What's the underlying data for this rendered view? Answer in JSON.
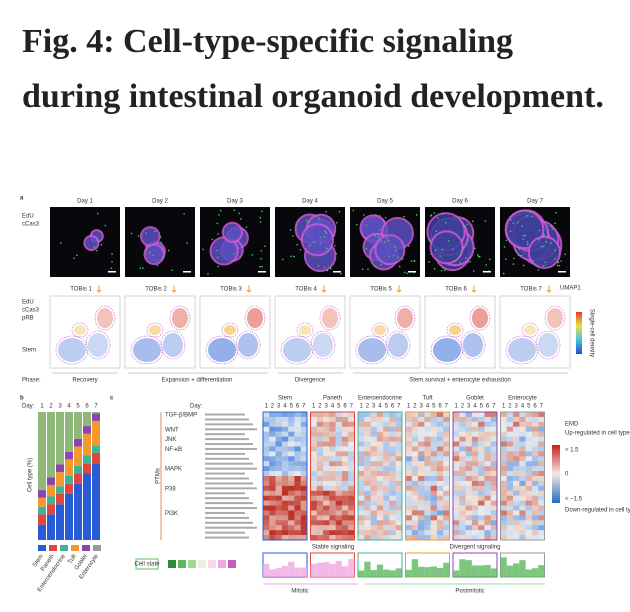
{
  "title": "Fig. 4: Cell-type-specific signaling during intestinal organoid development.",
  "figure": {
    "panel_a": {
      "label": "a",
      "stains": [
        "EdU",
        "cCas3"
      ],
      "days": [
        "Day 1",
        "Day 2",
        "Day 3",
        "Day 4",
        "Day 5",
        "Day 6",
        "Day 7"
      ],
      "tobis": [
        "TOBis 1",
        "TOBis 2",
        "TOBis 3",
        "TOBis 4",
        "TOBis 5",
        "TOBis 6",
        "TOBis 7"
      ],
      "umap_stains": [
        "EdU",
        "cCas3",
        "pRB"
      ],
      "umap_cell": "Stem",
      "umap_axis": "UMAP1",
      "density_label": "Single-cell density",
      "phase_label": "Phase:",
      "phases": [
        "Recovery",
        "Expansion + differentiation",
        "Divergence",
        "Stem survival + enterocyte exhaustion"
      ]
    },
    "panel_b": {
      "label": "b",
      "day_label": "Day:",
      "y_label": "Cell type (%)"
    },
    "panel_c": {
      "label": "c",
      "day_label": "Day:",
      "day_numbers": [
        "1",
        "2",
        "3",
        "4",
        "5",
        "6",
        "7"
      ],
      "cell_types": [
        "Stem",
        "Paneth",
        "Enteroendocrine",
        "Tuft",
        "Goblet",
        "Enterocyte"
      ],
      "pathways": [
        "TGF-β/BMP",
        "WNT",
        "JNK",
        "NF-κB",
        "MAPK",
        "P38",
        "PI3K"
      ],
      "ptm_label": "PTMs",
      "legend_title": "EMD",
      "legend_up": "Up-regulated in cell type",
      "legend_high": "> 1.5",
      "legend_mid": "0",
      "legend_low": "< −1.5",
      "legend_down": "Down-regulated in cell type",
      "stable": "Stable signaling",
      "divergent": "Divergent signaling",
      "cell_state": "Cell state",
      "mitotic": "Mitotic",
      "postmitotic": "Postmitotic"
    }
  }
}
